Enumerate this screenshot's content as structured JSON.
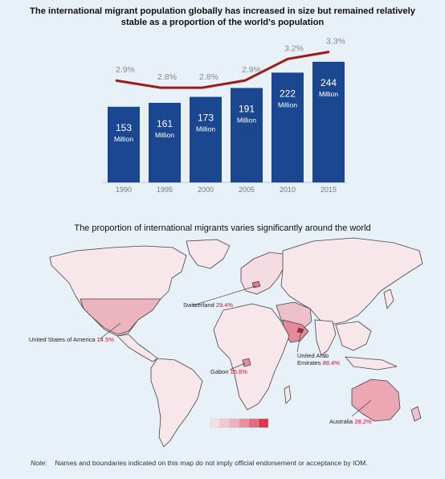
{
  "chart_data": [
    {
      "type": "bar",
      "title": "The international migrant population globally has increased in size but remained relatively stable as a proportion of the world's population",
      "categories": [
        "1990",
        "1995",
        "2000",
        "2005",
        "2010",
        "2015"
      ],
      "series": [
        {
          "values": [
            153,
            161,
            173,
            191,
            222,
            244
          ],
          "value_labels": [
            "153",
            "161",
            "173",
            "191",
            "222",
            "244"
          ],
          "unit_label": "Million",
          "color": "#1a4790"
        },
        {
          "values": [
            2.9,
            2.8,
            2.8,
            2.9,
            3.2,
            3.3
          ],
          "value_labels": [
            "2.9%",
            "2.8%",
            "2.8%",
            "2.9%",
            "3.2%",
            "3.3%"
          ],
          "color": "#9e1a1a"
        }
      ],
      "ylim": [
        0,
        260
      ],
      "grid": false
    }
  ],
  "map": {
    "title": "The proportion of international migrants varies significantly around the world",
    "callouts": [
      {
        "name": "Switzerland",
        "value": "29.4%"
      },
      {
        "name": "United States of America",
        "value": "14.5%"
      },
      {
        "name": "Gabon",
        "value": "15.6%"
      },
      {
        "name": "United Arab Emirates",
        "value": "88.4%"
      },
      {
        "name": "Australia",
        "value": "28.2%"
      }
    ],
    "legend_colors": [
      "#f6dde3",
      "#f3c8d0",
      "#efb0bb",
      "#ea909e",
      "#e36b7d",
      "#d9394e"
    ]
  },
  "note": {
    "label": "Note:",
    "text": "Names and boundaries indicated on this map do not imply official endorsement or acceptance by IOM."
  }
}
